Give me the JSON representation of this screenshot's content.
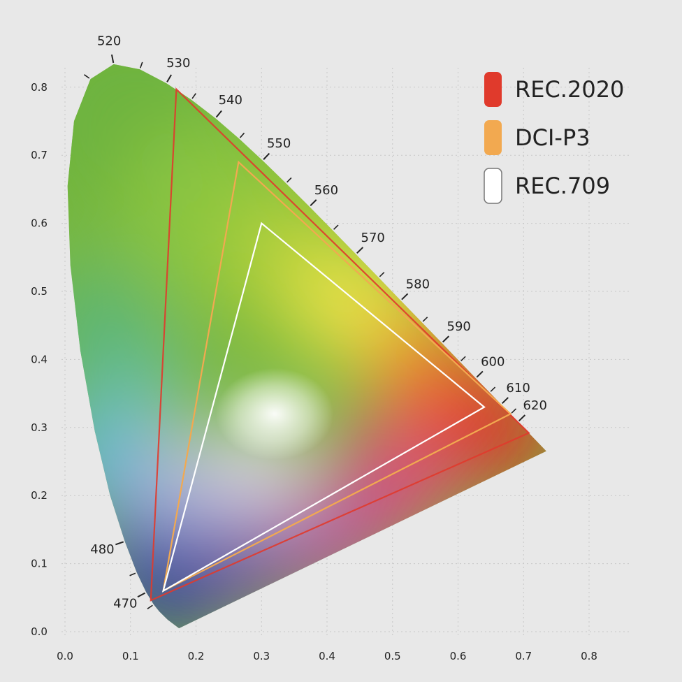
{
  "chart_data": {
    "type": "scatter",
    "title": "",
    "xlabel": "",
    "ylabel": "",
    "xlim": [
      0,
      0.8
    ],
    "ylim": [
      0,
      0.8
    ],
    "grid": true,
    "legend_placement": "top-right",
    "x_ticks": [
      "0.0",
      "0.1",
      "0.2",
      "0.3",
      "0.4",
      "0.5",
      "0.6",
      "0.7",
      "0.8"
    ],
    "y_ticks": [
      "0.0",
      "0.1",
      "0.2",
      "0.3",
      "0.4",
      "0.5",
      "0.6",
      "0.7",
      "0.8"
    ],
    "spectral_locus": [
      {
        "nm": 380,
        "x": 0.1741,
        "y": 0.005
      },
      {
        "nm": 450,
        "x": 0.1566,
        "y": 0.0177
      },
      {
        "nm": 460,
        "x": 0.144,
        "y": 0.0297
      },
      {
        "nm": 465,
        "x": 0.1355,
        "y": 0.0399
      },
      {
        "nm": 470,
        "x": 0.1241,
        "y": 0.0578
      },
      {
        "nm": 475,
        "x": 0.1096,
        "y": 0.0868
      },
      {
        "nm": 480,
        "x": 0.0913,
        "y": 0.1327
      },
      {
        "nm": 485,
        "x": 0.0687,
        "y": 0.2007
      },
      {
        "nm": 490,
        "x": 0.0454,
        "y": 0.295
      },
      {
        "nm": 495,
        "x": 0.0235,
        "y": 0.4127
      },
      {
        "nm": 500,
        "x": 0.0082,
        "y": 0.5384
      },
      {
        "nm": 505,
        "x": 0.0039,
        "y": 0.6548
      },
      {
        "nm": 510,
        "x": 0.0139,
        "y": 0.7502
      },
      {
        "nm": 515,
        "x": 0.0389,
        "y": 0.812
      },
      {
        "nm": 520,
        "x": 0.0743,
        "y": 0.8338
      },
      {
        "nm": 525,
        "x": 0.1142,
        "y": 0.8262
      },
      {
        "nm": 530,
        "x": 0.1547,
        "y": 0.8059
      },
      {
        "nm": 535,
        "x": 0.1929,
        "y": 0.7816
      },
      {
        "nm": 540,
        "x": 0.2296,
        "y": 0.7543
      },
      {
        "nm": 545,
        "x": 0.2658,
        "y": 0.7243
      },
      {
        "nm": 550,
        "x": 0.3016,
        "y": 0.6923
      },
      {
        "nm": 555,
        "x": 0.3373,
        "y": 0.6589
      },
      {
        "nm": 560,
        "x": 0.3731,
        "y": 0.6245
      },
      {
        "nm": 565,
        "x": 0.4087,
        "y": 0.5896
      },
      {
        "nm": 570,
        "x": 0.4441,
        "y": 0.5547
      },
      {
        "nm": 575,
        "x": 0.4788,
        "y": 0.5202
      },
      {
        "nm": 580,
        "x": 0.5125,
        "y": 0.4866
      },
      {
        "nm": 585,
        "x": 0.5448,
        "y": 0.4544
      },
      {
        "nm": 590,
        "x": 0.5752,
        "y": 0.4242
      },
      {
        "nm": 595,
        "x": 0.6029,
        "y": 0.3965
      },
      {
        "nm": 600,
        "x": 0.627,
        "y": 0.3725
      },
      {
        "nm": 605,
        "x": 0.6482,
        "y": 0.3514
      },
      {
        "nm": 610,
        "x": 0.6658,
        "y": 0.334
      },
      {
        "nm": 615,
        "x": 0.6801,
        "y": 0.3197
      },
      {
        "nm": 620,
        "x": 0.6915,
        "y": 0.3083
      },
      {
        "nm": 630,
        "x": 0.7079,
        "y": 0.292
      },
      {
        "nm": 640,
        "x": 0.719,
        "y": 0.2809
      },
      {
        "nm": 700,
        "x": 0.7347,
        "y": 0.2653
      }
    ],
    "wavelength_labels": [
      {
        "nm": 470,
        "label": "470"
      },
      {
        "nm": 480,
        "label": "480"
      },
      {
        "nm": 520,
        "label": "520"
      },
      {
        "nm": 530,
        "label": "530"
      },
      {
        "nm": 540,
        "label": "540"
      },
      {
        "nm": 550,
        "label": "550"
      },
      {
        "nm": 560,
        "label": "560"
      },
      {
        "nm": 570,
        "label": "570"
      },
      {
        "nm": 580,
        "label": "580"
      },
      {
        "nm": 590,
        "label": "590"
      },
      {
        "nm": 600,
        "label": "600"
      },
      {
        "nm": 610,
        "label": "610"
      },
      {
        "nm": 620,
        "label": "620"
      }
    ],
    "series": [
      {
        "name": "REC.2020",
        "color": "#e03a2c",
        "points": [
          [
            0.708,
            0.292
          ],
          [
            0.17,
            0.797
          ],
          [
            0.131,
            0.046
          ]
        ]
      },
      {
        "name": "DCI-P3",
        "color": "#f2a950",
        "points": [
          [
            0.68,
            0.32
          ],
          [
            0.265,
            0.69
          ],
          [
            0.15,
            0.06
          ]
        ]
      },
      {
        "name": "REC.709",
        "color": "#ffffff",
        "points": [
          [
            0.64,
            0.33
          ],
          [
            0.3,
            0.6
          ],
          [
            0.15,
            0.06
          ]
        ]
      }
    ]
  }
}
